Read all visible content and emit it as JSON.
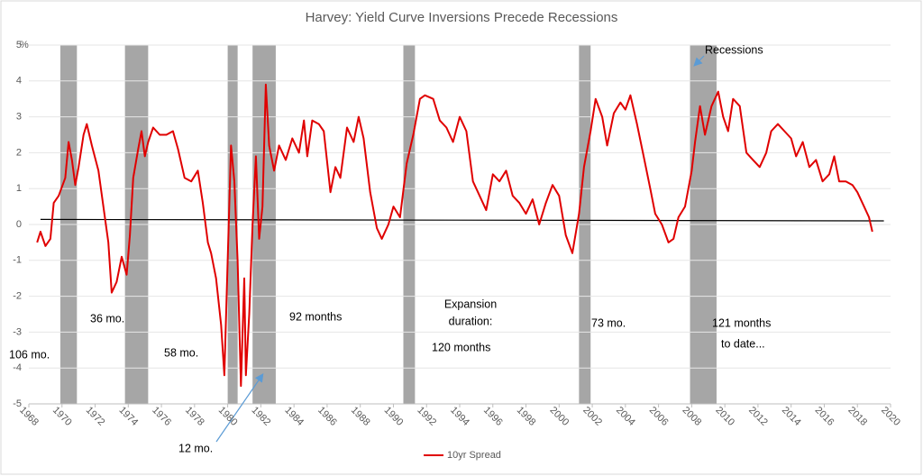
{
  "chart_data": {
    "type": "line",
    "title": "Harvey: Yield Curve Inversions Precede Recessions",
    "y_label": "%",
    "xlim": [
      1968,
      2020
    ],
    "xticks": [
      1968,
      1970,
      1972,
      1974,
      1976,
      1978,
      1980,
      1982,
      1984,
      1986,
      1988,
      1990,
      1992,
      1994,
      1996,
      1998,
      2000,
      2002,
      2004,
      2006,
      2008,
      2010,
      2012,
      2014,
      2016,
      2018,
      2020
    ],
    "ylim": [
      -5,
      5
    ],
    "yticks": [
      -5,
      -4,
      -3,
      -2,
      -1,
      0,
      1,
      2,
      3,
      4,
      5
    ],
    "grid": true,
    "legend": "bottom",
    "recession_color": "#a6a6a6",
    "recessions": [
      [
        1969.9,
        1970.9
      ],
      [
        1973.8,
        1975.2
      ],
      [
        1980.0,
        1980.6
      ],
      [
        1981.5,
        1982.9
      ],
      [
        1990.6,
        1991.3
      ],
      [
        2001.2,
        2001.9
      ],
      [
        2007.9,
        2009.5
      ]
    ],
    "baseline": {
      "color": "#000000",
      "x": [
        1968.7,
        2019.6
      ],
      "values": [
        0.14,
        0.1
      ]
    },
    "series": [
      {
        "name": "10yr Spread",
        "color": "#e00000",
        "x": [
          1968.5,
          1968.7,
          1969.0,
          1969.3,
          1969.5,
          1969.8,
          1970.2,
          1970.4,
          1970.6,
          1970.8,
          1971.0,
          1971.3,
          1971.5,
          1971.8,
          1972.2,
          1972.5,
          1972.8,
          1973.0,
          1973.3,
          1973.6,
          1973.9,
          1974.1,
          1974.3,
          1974.6,
          1974.8,
          1975.0,
          1975.2,
          1975.5,
          1975.9,
          1976.3,
          1976.7,
          1977.0,
          1977.4,
          1977.8,
          1978.2,
          1978.5,
          1978.8,
          1979.0,
          1979.3,
          1979.6,
          1979.8,
          1980.0,
          1980.2,
          1980.4,
          1980.6,
          1980.8,
          1981.0,
          1981.1,
          1981.3,
          1981.5,
          1981.7,
          1981.9,
          1982.1,
          1982.3,
          1982.5,
          1982.8,
          1983.1,
          1983.5,
          1983.9,
          1984.3,
          1984.6,
          1984.8,
          1985.1,
          1985.5,
          1985.8,
          1986.2,
          1986.5,
          1986.8,
          1987.2,
          1987.6,
          1987.9,
          1988.2,
          1988.6,
          1989.0,
          1989.3,
          1989.7,
          1990.0,
          1990.4,
          1990.8,
          1991.2,
          1991.6,
          1991.9,
          1992.4,
          1992.8,
          1993.2,
          1993.6,
          1994.0,
          1994.4,
          1994.8,
          1995.2,
          1995.6,
          1996.0,
          1996.4,
          1996.8,
          1997.2,
          1997.6,
          1998.0,
          1998.4,
          1998.8,
          1999.2,
          1999.6,
          2000.0,
          2000.4,
          2000.8,
          2001.2,
          2001.5,
          2001.9,
          2002.2,
          2002.6,
          2002.9,
          2003.3,
          2003.7,
          2004.0,
          2004.3,
          2004.7,
          2005.1,
          2005.5,
          2005.8,
          2006.2,
          2006.6,
          2006.9,
          2007.2,
          2007.6,
          2008.0,
          2008.2,
          2008.5,
          2008.8,
          2009.2,
          2009.6,
          2009.9,
          2010.2,
          2010.5,
          2010.9,
          2011.3,
          2011.7,
          2012.1,
          2012.5,
          2012.8,
          2013.2,
          2013.6,
          2014.0,
          2014.3,
          2014.7,
          2015.1,
          2015.5,
          2015.9,
          2016.3,
          2016.6,
          2016.9,
          2017.3,
          2017.7,
          2018.0,
          2018.4,
          2018.7,
          2018.9
        ],
        "values": [
          -0.5,
          -0.2,
          -0.6,
          -0.4,
          0.6,
          0.8,
          1.3,
          2.3,
          1.8,
          1.1,
          1.6,
          2.5,
          2.8,
          2.2,
          1.5,
          0.5,
          -0.5,
          -1.9,
          -1.6,
          -0.9,
          -1.4,
          -0.3,
          1.3,
          2.1,
          2.6,
          1.9,
          2.3,
          2.7,
          2.5,
          2.5,
          2.6,
          2.1,
          1.3,
          1.2,
          1.5,
          0.6,
          -0.5,
          -0.8,
          -1.5,
          -2.8,
          -4.2,
          -1.0,
          2.2,
          1.2,
          -1.0,
          -4.5,
          -1.5,
          -4.2,
          -2.5,
          0.0,
          1.9,
          -0.4,
          0.5,
          3.9,
          2.2,
          1.5,
          2.2,
          1.8,
          2.4,
          2.0,
          2.9,
          1.9,
          2.9,
          2.8,
          2.6,
          0.9,
          1.6,
          1.3,
          2.7,
          2.3,
          3.0,
          2.4,
          0.9,
          -0.1,
          -0.4,
          0.0,
          0.5,
          0.2,
          1.7,
          2.5,
          3.5,
          3.6,
          3.5,
          2.9,
          2.7,
          2.3,
          3.0,
          2.6,
          1.2,
          0.8,
          0.4,
          1.4,
          1.2,
          1.5,
          0.8,
          0.6,
          0.3,
          0.7,
          0.0,
          0.6,
          1.1,
          0.8,
          -0.3,
          -0.8,
          0.3,
          1.6,
          2.6,
          3.5,
          3.0,
          2.2,
          3.1,
          3.4,
          3.2,
          3.6,
          2.8,
          1.9,
          1.0,
          0.3,
          0.0,
          -0.5,
          -0.4,
          0.2,
          0.5,
          1.5,
          2.3,
          3.3,
          2.5,
          3.3,
          3.7,
          3.0,
          2.6,
          3.5,
          3.3,
          2.0,
          1.8,
          1.6,
          2.0,
          2.6,
          2.8,
          2.6,
          2.4,
          1.9,
          2.3,
          1.6,
          1.8,
          1.2,
          1.4,
          1.9,
          1.2,
          1.2,
          1.1,
          0.9,
          0.5,
          0.2,
          -0.2
        ]
      }
    ],
    "annotations": [
      "106 mo.",
      "36 mo.",
      "58 mo.",
      "12 mo.",
      "92 months",
      "Expansion",
      "duration:",
      "120 months",
      "73 mo.",
      "121 months",
      "to date...",
      "Recessions"
    ]
  }
}
